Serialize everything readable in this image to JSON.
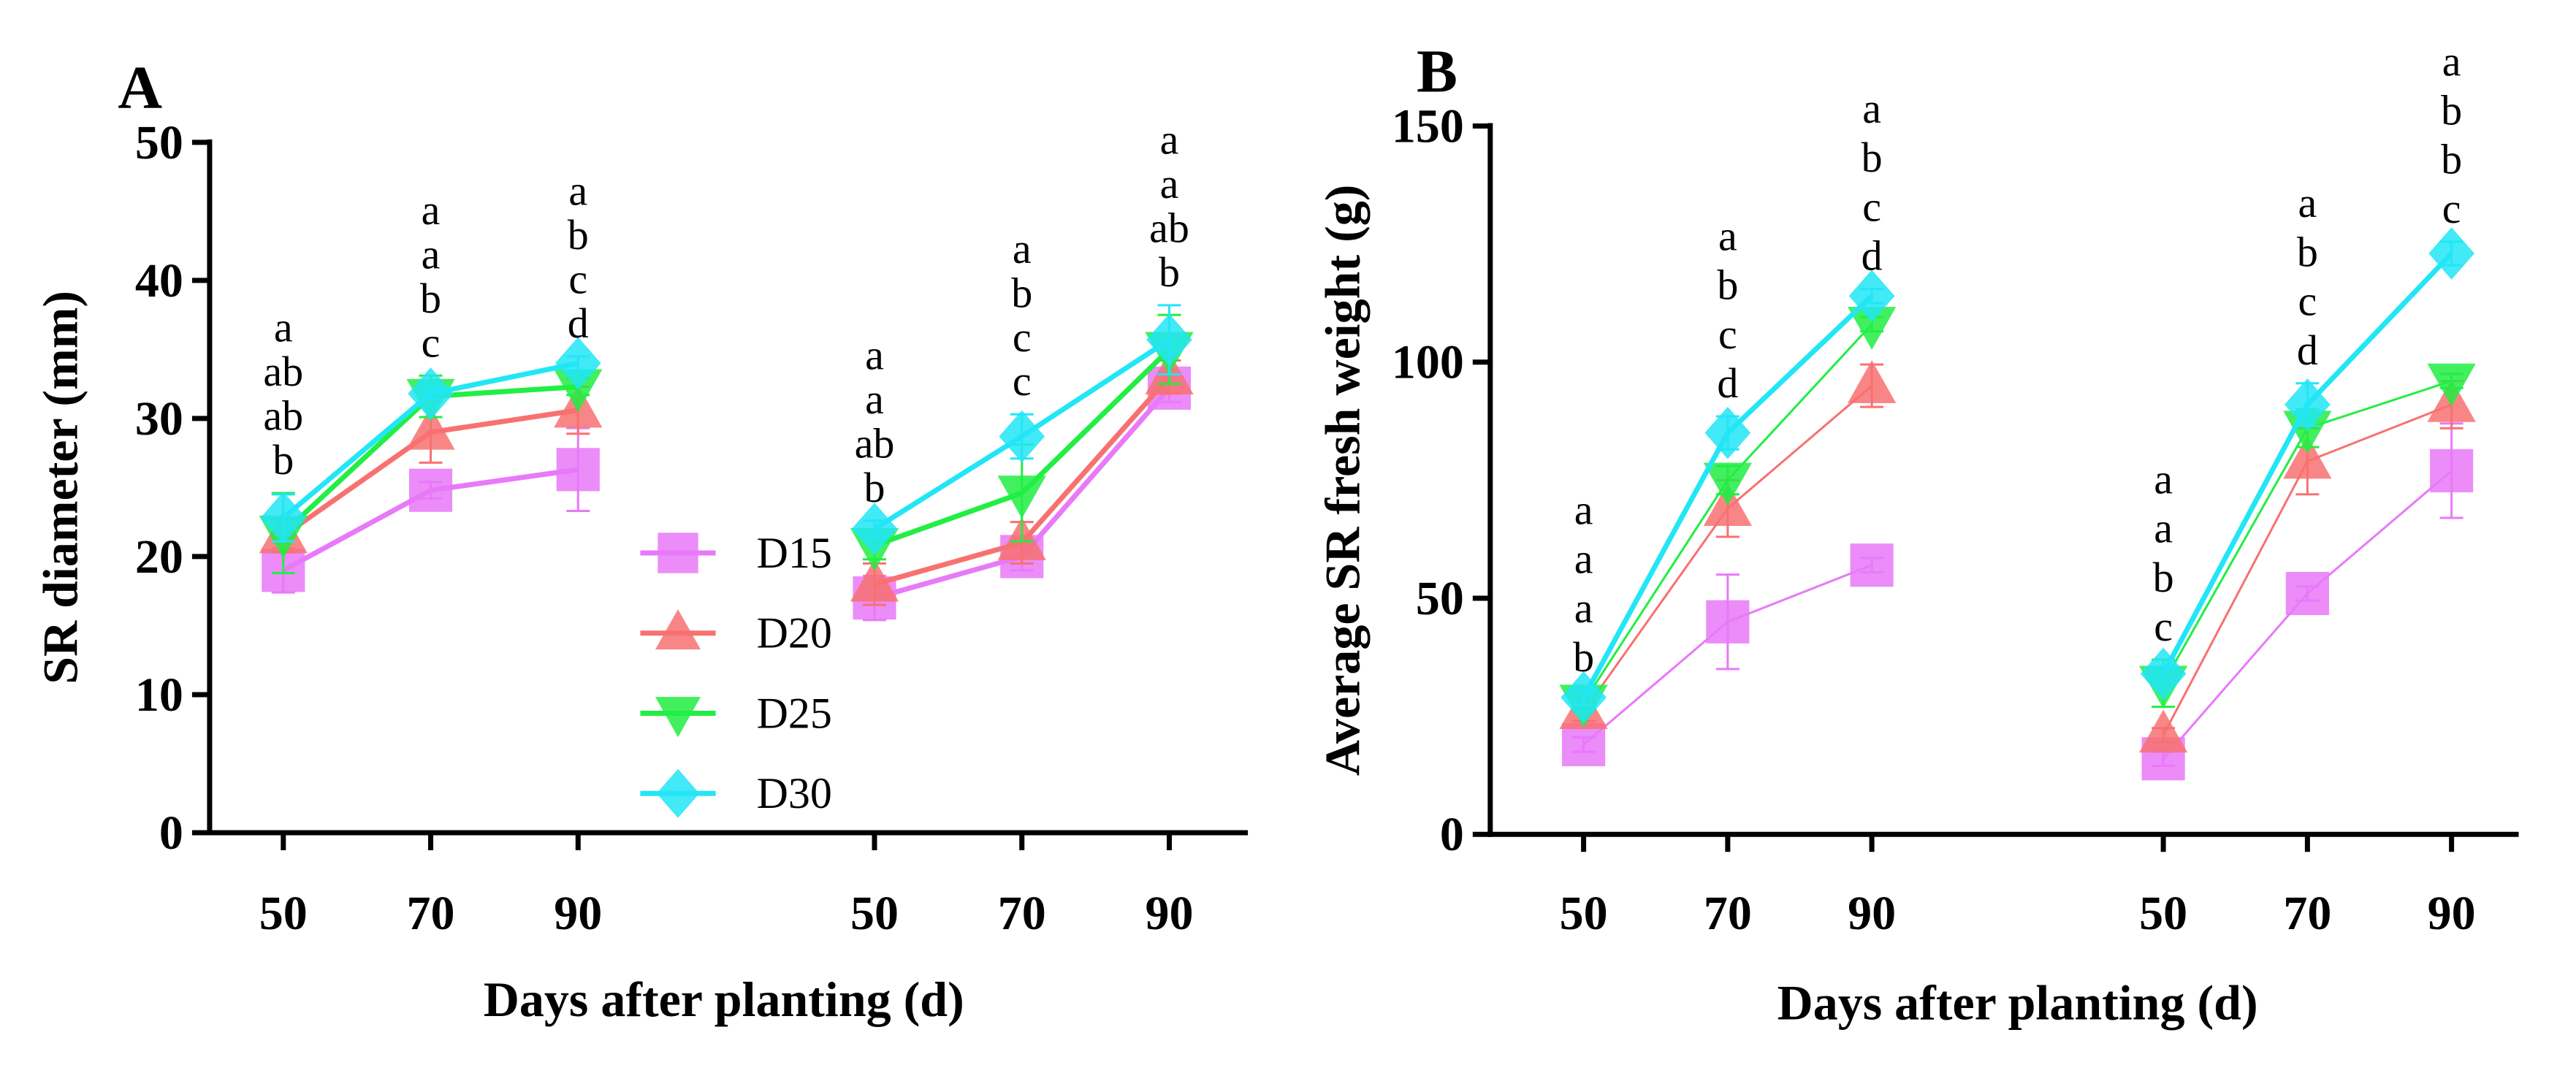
{
  "legend": [
    "D15",
    "D20",
    "D25",
    "D30"
  ],
  "series_style": [
    {
      "name": "D15",
      "color": "#e879f9",
      "marker": "square"
    },
    {
      "name": "D20",
      "color": "#f87171",
      "marker": "triangle-up"
    },
    {
      "name": "D25",
      "color": "#22ee44",
      "marker": "triangle-down"
    },
    {
      "name": "D30",
      "color": "#22e6f5",
      "marker": "diamond"
    }
  ],
  "chart_data": [
    {
      "panel": "A",
      "type": "line",
      "xlabel": "Days after planting (d)",
      "ylabel": "SR diameter (mm)",
      "ylim": [
        0,
        50
      ],
      "yticks": [
        0,
        10,
        20,
        30,
        40,
        50
      ],
      "groups": [
        {
          "x": [
            50,
            70,
            90
          ],
          "series": [
            {
              "name": "D15",
              "values": [
                19.0,
                24.8,
                26.3
              ],
              "errors": [
                1.6,
                0.6,
                3.0
              ]
            },
            {
              "name": "D20",
              "values": [
                21.5,
                29.0,
                30.6
              ],
              "errors": [
                1.2,
                2.2,
                1.7
              ]
            },
            {
              "name": "D25",
              "values": [
                21.7,
                31.6,
                32.3
              ],
              "errors": [
                2.9,
                1.5,
                0.6
              ]
            },
            {
              "name": "D30",
              "values": [
                22.8,
                31.8,
                34.0
              ],
              "errors": [
                1.7,
                0.4,
                0.5
              ]
            }
          ],
          "significance": [
            [
              "a",
              "ab",
              "ab",
              "b"
            ],
            [
              "a",
              "a",
              "b",
              "c"
            ],
            [
              "a",
              "b",
              "c",
              "d"
            ]
          ]
        },
        {
          "x": [
            50,
            70,
            90
          ],
          "series": [
            {
              "name": "D15",
              "values": [
                17.0,
                20.0,
                32.2
              ],
              "errors": [
                1.6,
                1.0,
                1.0
              ]
            },
            {
              "name": "D20",
              "values": [
                18.0,
                21.0,
                33.0
              ],
              "errors": [
                1.5,
                1.5,
                1.2
              ]
            },
            {
              "name": "D25",
              "values": [
                20.8,
                24.6,
                35.0
              ],
              "errors": [
                1.0,
                3.5,
                2.5
              ]
            },
            {
              "name": "D30",
              "values": [
                22.0,
                28.7,
                35.7
              ],
              "errors": [
                0.6,
                1.6,
                2.5
              ]
            }
          ],
          "significance": [
            [
              "a",
              "a",
              "ab",
              "b"
            ],
            [
              "a",
              "b",
              "c",
              "c"
            ],
            [
              "a",
              "a",
              "ab",
              "b"
            ]
          ]
        }
      ]
    },
    {
      "panel": "B",
      "type": "line",
      "xlabel": "Days after planting (d)",
      "ylabel": "Average SR fresh weight (g)",
      "ylim": [
        0,
        150
      ],
      "yticks": [
        0,
        50,
        100,
        150
      ],
      "groups": [
        {
          "x": [
            50,
            70,
            90
          ],
          "series": [
            {
              "name": "D15",
              "values": [
                19.0,
                45.0,
                57.0
              ],
              "errors": [
                1.5,
                10.0,
                1.5
              ]
            },
            {
              "name": "D20",
              "values": [
                26.0,
                69.0,
                95.0
              ],
              "errors": [
                2.0,
                6.0,
                4.5
              ]
            },
            {
              "name": "D25",
              "values": [
                28.0,
                75.0,
                108.0
              ],
              "errors": [
                2.0,
                3.0,
                1.5
              ]
            },
            {
              "name": "D30",
              "values": [
                29.0,
                85.0,
                114.0
              ],
              "errors": [
                1.5,
                3.5,
                1.5
              ]
            }
          ],
          "significance": [
            [
              "a",
              "a",
              "a",
              "b"
            ],
            [
              "a",
              "b",
              "c",
              "d"
            ],
            [
              "a",
              "b",
              "c",
              "d"
            ]
          ]
        },
        {
          "x": [
            50,
            70,
            90
          ],
          "series": [
            {
              "name": "D15",
              "values": [
                16.0,
                51.0,
                77.0
              ],
              "errors": [
                1.5,
                1.5,
                10.0
              ]
            },
            {
              "name": "D20",
              "values": [
                21.0,
                79.0,
                91.0
              ],
              "errors": [
                1.5,
                7.0,
                5.0
              ]
            },
            {
              "name": "D25",
              "values": [
                32.0,
                86.0,
                96.0
              ],
              "errors": [
                5.0,
                4.0,
                1.5
              ]
            },
            {
              "name": "D30",
              "values": [
                34.0,
                91.0,
                123.0
              ],
              "errors": [
                1.5,
                4.5,
                2.5
              ]
            }
          ],
          "significance": [
            [
              "a",
              "a",
              "b",
              "c"
            ],
            [
              "a",
              "b",
              "c",
              "d"
            ],
            [
              "a",
              "b",
              "b",
              "c"
            ]
          ]
        }
      ]
    }
  ]
}
